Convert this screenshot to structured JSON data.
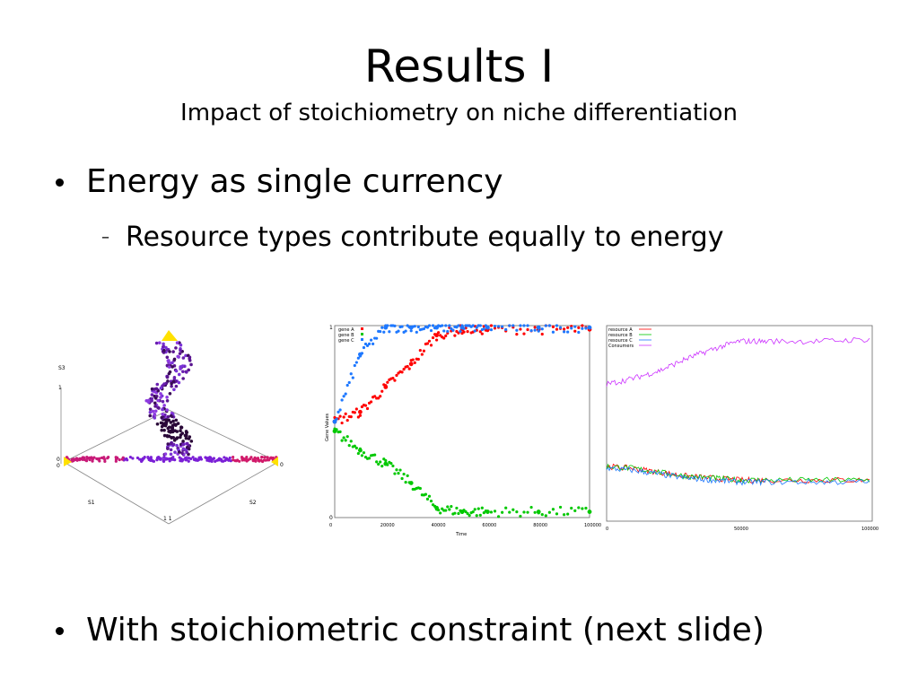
{
  "slide": {
    "title": "Results I",
    "subtitle": "Impact of stoichiometry on niche differentiation",
    "bullets": [
      {
        "text": "Energy as single currency",
        "subs": [
          "Resource types contribute equally to energy"
        ]
      },
      {
        "text": "With stoichiometric constraint (next slide)"
      }
    ],
    "bullet_glyph": "•",
    "sub_glyph": "–"
  },
  "figures": {
    "simplex": {
      "labels": {
        "s3": "S3",
        "s1": "S1",
        "s2": "S2",
        "top_one": "1",
        "left_zero": "0",
        "left_a": "0",
        "right_zero": "0",
        "bottom": "1  1"
      }
    },
    "genes": {
      "legend": [
        "gene A",
        "gene B",
        "gene C"
      ],
      "colors": [
        "#ff0000",
        "#00c800",
        "#1e78ff"
      ],
      "xticks": [
        "0",
        "20000",
        "40000",
        "60000",
        "80000",
        "100000"
      ],
      "yticks": [
        "1",
        "0"
      ],
      "xlabel": "Time",
      "ylabel": "Gene Values"
    },
    "resources": {
      "legend": [
        "resource A",
        "resource B",
        "resource C",
        "Consumers"
      ],
      "colors": [
        "#ff0000",
        "#00c800",
        "#1e78ff",
        "#cc33ff"
      ],
      "xticks": [
        "0",
        "50000",
        "100000"
      ]
    }
  },
  "chart_data": [
    {
      "type": "scatter",
      "title": "",
      "xlabel": "Time",
      "ylabel": "Gene Values",
      "xlim": [
        0,
        100000
      ],
      "ylim": [
        0,
        1
      ],
      "x": [
        0,
        10000,
        20000,
        30000,
        40000,
        50000,
        60000,
        80000,
        100000
      ],
      "series": [
        {
          "name": "gene A",
          "values": [
            0.5,
            0.55,
            0.68,
            0.8,
            0.95,
            0.98,
            0.98,
            0.98,
            0.98
          ]
        },
        {
          "name": "gene B",
          "values": [
            0.45,
            0.35,
            0.28,
            0.18,
            0.05,
            0.03,
            0.03,
            0.03,
            0.03
          ]
        },
        {
          "name": "gene C",
          "values": [
            0.5,
            0.85,
            0.99,
            0.99,
            0.99,
            0.99,
            0.99,
            0.99,
            0.99
          ]
        }
      ]
    },
    {
      "type": "line",
      "title": "",
      "xlabel": "",
      "ylabel": "",
      "xlim": [
        0,
        100000
      ],
      "x": [
        0,
        10000,
        20000,
        30000,
        40000,
        50000,
        60000,
        80000,
        100000
      ],
      "series": [
        {
          "name": "resource A",
          "values": [
            0.28,
            0.27,
            0.25,
            0.23,
            0.22,
            0.21,
            0.21,
            0.21,
            0.21
          ]
        },
        {
          "name": "resource B",
          "values": [
            0.28,
            0.27,
            0.25,
            0.23,
            0.22,
            0.21,
            0.21,
            0.21,
            0.21
          ]
        },
        {
          "name": "resource C",
          "values": [
            0.27,
            0.26,
            0.24,
            0.22,
            0.21,
            0.2,
            0.2,
            0.2,
            0.2
          ]
        },
        {
          "name": "Consumers",
          "values": [
            0.7,
            0.73,
            0.77,
            0.83,
            0.88,
            0.92,
            0.92,
            0.92,
            0.93
          ]
        }
      ]
    }
  ]
}
